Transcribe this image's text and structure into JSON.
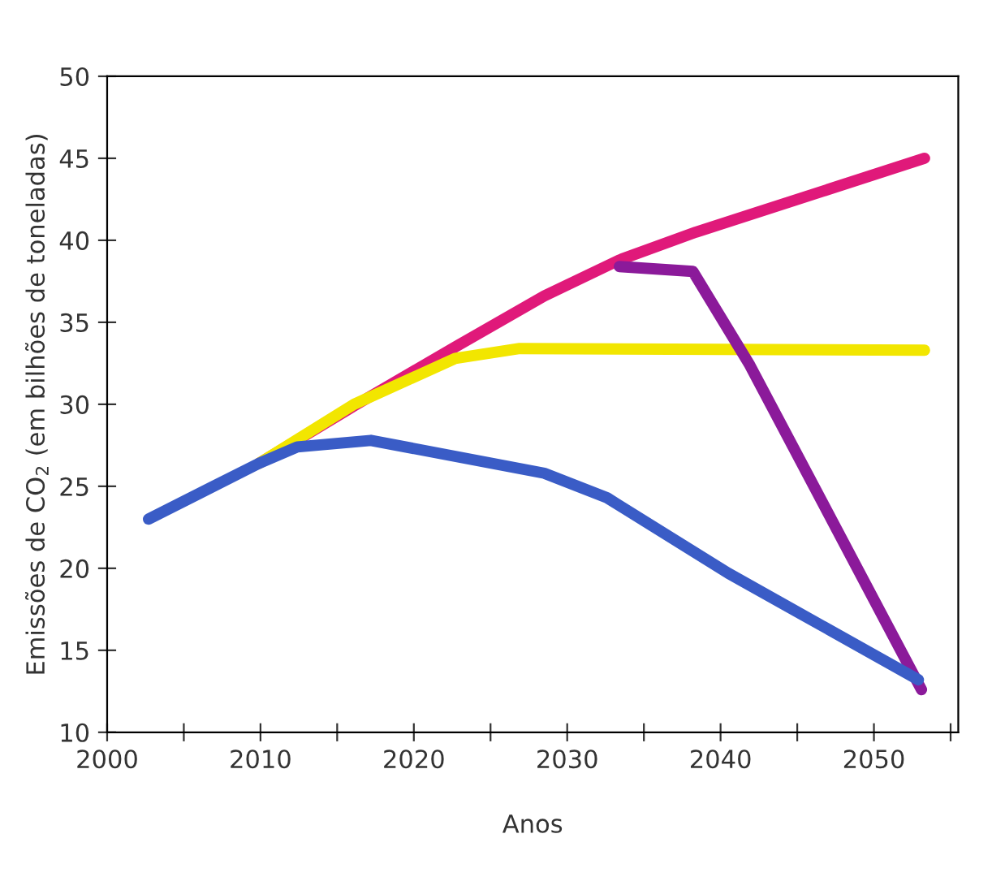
{
  "chart_data": {
    "type": "line",
    "xlabel": "Anos",
    "ylabel": "Emissões de CO$_{2}$ (em bilhões de toneladas)",
    "xlim": [
      2000,
      2055.5
    ],
    "ylim": [
      10,
      50
    ],
    "xticks": [
      2000,
      {
        "value": 2005,
        "label": null
      },
      2010,
      {
        "value": 2015,
        "label": null
      },
      2020,
      {
        "value": 2025,
        "label": null
      },
      2030,
      {
        "value": 2035,
        "label": null
      },
      2040,
      {
        "value": 2045,
        "label": null
      },
      2050,
      {
        "value": 2055,
        "label": null
      }
    ],
    "yticks": [
      10,
      15,
      20,
      25,
      30,
      35,
      40,
      45,
      50
    ],
    "grid": false,
    "legend": false,
    "marker": "none",
    "line_style": "solid",
    "series": [
      {
        "color": "#e0197a",
        "x": [
          2009.9,
          2016.1,
          2022.7,
          2028.5,
          2033.4,
          2038.4,
          2053.3
        ],
        "values": [
          26.4,
          29.9,
          33.5,
          36.6,
          38.8,
          40.5,
          45
        ]
      },
      {
        "color": "#f2e600",
        "x": [
          2009.9,
          2016.1,
          2022.7,
          2026.9,
          2053.3
        ],
        "values": [
          26.4,
          30,
          32.8,
          33.4,
          33.3
        ]
      },
      {
        "color": "#8b1a9a",
        "x": [
          2033.4,
          2038.2,
          2041.9,
          2053.1
        ],
        "values": [
          38.4,
          38.1,
          32.4,
          12.6
        ]
      },
      {
        "color": "#3a5cc6",
        "x": [
          2002.7,
          2009.9,
          2012.4,
          2017.2,
          2028.5,
          2032.6,
          2040.5,
          2052.9
        ],
        "values": [
          23,
          26.4,
          27.4,
          27.8,
          25.8,
          24.3,
          19.7,
          13.2
        ]
      }
    ]
  }
}
